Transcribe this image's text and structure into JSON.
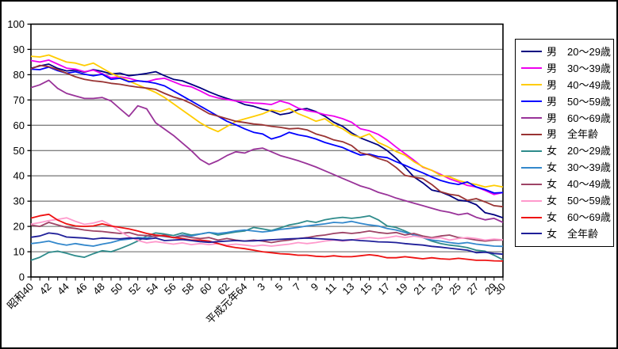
{
  "window": {
    "background": "#FFFFFF",
    "border_color": "#000000"
  },
  "chart_data": {
    "type": "line",
    "title": "",
    "grid": "horizontal",
    "legend_position": "right",
    "colors": {
      "gridline": "#808080",
      "axis": "#000000",
      "plot_background": "#FFFFFF"
    },
    "y_axis": {
      "min": 0,
      "max": 100,
      "step": 10,
      "tick_labels": [
        "0",
        "10",
        "20",
        "30",
        "40",
        "50",
        "60",
        "70",
        "80",
        "90",
        "100"
      ]
    },
    "x_axis": {
      "n_points": 54,
      "ticks": [
        {
          "i": 0,
          "label": "昭和40"
        },
        {
          "i": 2,
          "label": "42"
        },
        {
          "i": 4,
          "label": "44"
        },
        {
          "i": 6,
          "label": "46"
        },
        {
          "i": 8,
          "label": "48"
        },
        {
          "i": 10,
          "label": "50"
        },
        {
          "i": 12,
          "label": "52"
        },
        {
          "i": 14,
          "label": "54"
        },
        {
          "i": 16,
          "label": "56"
        },
        {
          "i": 18,
          "label": "58"
        },
        {
          "i": 20,
          "label": "60"
        },
        {
          "i": 22,
          "label": "62"
        },
        {
          "i": 24,
          "label": "平成元年64"
        },
        {
          "i": 26,
          "label": "3"
        },
        {
          "i": 28,
          "label": "5"
        },
        {
          "i": 30,
          "label": "7"
        },
        {
          "i": 32,
          "label": "9"
        },
        {
          "i": 34,
          "label": "11"
        },
        {
          "i": 36,
          "label": "13"
        },
        {
          "i": 38,
          "label": "15"
        },
        {
          "i": 40,
          "label": "17"
        },
        {
          "i": 42,
          "label": "19"
        },
        {
          "i": 44,
          "label": "21"
        },
        {
          "i": 46,
          "label": "23"
        },
        {
          "i": 48,
          "label": "25"
        },
        {
          "i": 50,
          "label": "27"
        },
        {
          "i": 52,
          "label": "29"
        },
        {
          "i": 53,
          "label": "30"
        }
      ]
    },
    "series": [
      {
        "key": "m20-29",
        "name": "男　20〜29歳",
        "color": "#000080",
        "values": [
          82.5,
          83.5,
          84.2,
          82.5,
          81.5,
          81.8,
          81.0,
          82.0,
          81.3,
          80.3,
          80.6,
          79.6,
          80.0,
          80.5,
          81.2,
          79.6,
          78.2,
          77.6,
          76.2,
          74.8,
          73.2,
          71.8,
          70.6,
          69.6,
          68.2,
          67.5,
          66.4,
          65.6,
          64.2,
          64.8,
          66.2,
          66.6,
          65.4,
          63.6,
          61.2,
          59.6,
          57.0,
          55.0,
          53.6,
          52.2,
          50.0,
          47.0,
          43.4,
          39.6,
          37.2,
          34.4,
          33.6,
          32.2,
          30.4,
          30.0,
          28.6,
          25.4,
          24.6,
          23.4
        ]
      },
      {
        "key": "m30-39",
        "name": "男　30〜39歳",
        "color": "#EE00EE",
        "values": [
          85.6,
          85.0,
          85.8,
          84.2,
          82.6,
          82.2,
          81.2,
          81.8,
          80.4,
          78.8,
          79.2,
          78.6,
          77.6,
          77.2,
          78.2,
          78.6,
          77.2,
          75.8,
          75.2,
          73.6,
          71.8,
          70.8,
          70.2,
          69.6,
          69.2,
          68.8,
          68.6,
          68.2,
          69.6,
          68.6,
          66.8,
          65.8,
          65.2,
          64.2,
          63.6,
          62.6,
          61.2,
          58.6,
          57.8,
          56.4,
          54.2,
          51.4,
          48.8,
          46.2,
          43.4,
          42.2,
          40.6,
          38.8,
          37.6,
          36.2,
          35.6,
          34.2,
          32.6,
          33.4
        ]
      },
      {
        "key": "m40-49",
        "name": "男　40〜49歳",
        "color": "#FFCC00",
        "values": [
          87.3,
          87.0,
          87.8,
          86.4,
          85.0,
          84.6,
          83.6,
          84.6,
          82.6,
          80.6,
          79.0,
          77.5,
          76.0,
          74.5,
          73.0,
          71.0,
          68.5,
          66.0,
          63.5,
          61.0,
          59.0,
          57.5,
          59.5,
          61.5,
          62.5,
          63.5,
          64.5,
          66.0,
          65.4,
          66.6,
          64.6,
          63.2,
          61.6,
          62.6,
          60.2,
          58.6,
          56.2,
          55.2,
          56.6,
          53.2,
          51.6,
          49.6,
          48.2,
          45.6,
          43.6,
          42.2,
          40.2,
          39.6,
          38.2,
          37.2,
          36.6,
          35.6,
          36.2,
          35.6
        ]
      },
      {
        "key": "m50-59",
        "name": "男　50〜59歳",
        "color": "#0000FF",
        "values": [
          82.2,
          82.0,
          83.0,
          81.6,
          80.6,
          81.2,
          80.2,
          79.6,
          80.2,
          78.2,
          78.6,
          77.2,
          77.6,
          77.2,
          76.6,
          75.6,
          73.6,
          71.6,
          69.6,
          67.6,
          65.6,
          63.6,
          61.6,
          60.2,
          58.6,
          57.2,
          56.6,
          54.6,
          55.6,
          57.2,
          56.2,
          55.6,
          54.6,
          53.2,
          52.2,
          51.2,
          49.6,
          48.2,
          48.6,
          47.6,
          47.2,
          45.6,
          44.2,
          42.6,
          41.2,
          39.6,
          38.2,
          37.2,
          36.6,
          37.6,
          35.6,
          34.6,
          33.2,
          33.4
        ]
      },
      {
        "key": "m60-69",
        "name": "男　60〜69歳",
        "color": "#993399",
        "values": [
          74.9,
          76.0,
          77.8,
          74.6,
          72.6,
          71.6,
          70.6,
          70.6,
          71.0,
          69.6,
          66.5,
          63.5,
          67.7,
          66.5,
          61.0,
          58.5,
          56.0,
          53.0,
          50.0,
          46.5,
          44.5,
          46.0,
          48.0,
          49.5,
          49.0,
          50.5,
          51.0,
          49.5,
          48.0,
          47.0,
          46.0,
          44.8,
          43.5,
          42.0,
          40.5,
          39.0,
          37.5,
          36.0,
          35.0,
          33.5,
          32.5,
          31.2,
          30.2,
          29.2,
          28.2,
          27.2,
          26.2,
          25.6,
          24.6,
          25.2,
          23.6,
          22.6,
          23.2,
          21.6
        ]
      },
      {
        "key": "m-all",
        "name": "男　全年齢",
        "color": "#993333",
        "values": [
          82.3,
          83.7,
          83.2,
          82.0,
          80.6,
          79.2,
          78.2,
          77.6,
          77.2,
          76.6,
          76.2,
          75.6,
          75.1,
          74.7,
          74.2,
          72.6,
          71.2,
          70.2,
          68.6,
          66.6,
          64.6,
          63.6,
          62.6,
          61.6,
          61.1,
          60.5,
          60.2,
          59.6,
          59.2,
          58.6,
          58.8,
          58.2,
          56.6,
          55.6,
          54.2,
          53.5,
          52.0,
          49.1,
          48.3,
          46.9,
          45.8,
          43.3,
          40.2,
          39.5,
          38.9,
          36.6,
          33.7,
          32.7,
          32.2,
          30.3,
          31.0,
          29.7,
          28.2,
          27.8
        ]
      },
      {
        "key": "f20-29",
        "name": "女　20〜29歳",
        "color": "#2E8B8B",
        "values": [
          6.6,
          7.8,
          9.7,
          10.2,
          9.4,
          8.4,
          7.8,
          9.2,
          10.4,
          10.0,
          11.2,
          12.6,
          14.2,
          16.2,
          17.4,
          17.0,
          16.4,
          17.4,
          16.6,
          17.0,
          17.6,
          16.6,
          17.2,
          17.8,
          18.2,
          19.6,
          19.0,
          18.4,
          19.4,
          20.6,
          21.2,
          22.2,
          21.6,
          22.6,
          23.2,
          23.6,
          23.2,
          23.6,
          24.2,
          22.6,
          20.2,
          19.6,
          18.2,
          16.6,
          15.6,
          14.2,
          13.2,
          12.6,
          12.2,
          11.6,
          10.6,
          10.2,
          8.6,
          6.8
        ]
      },
      {
        "key": "f30-39",
        "name": "女　30〜39歳",
        "color": "#3388CC",
        "values": [
          13.2,
          13.6,
          14.2,
          13.2,
          12.6,
          13.2,
          12.6,
          12.2,
          13.0,
          13.6,
          14.6,
          15.0,
          15.6,
          15.4,
          16.4,
          16.0,
          15.6,
          16.6,
          16.2,
          17.0,
          17.6,
          17.2,
          17.6,
          18.2,
          18.6,
          18.2,
          17.8,
          18.2,
          18.8,
          19.2,
          19.6,
          20.2,
          20.6,
          21.0,
          21.6,
          21.4,
          22.0,
          21.2,
          20.6,
          20.2,
          19.2,
          18.6,
          17.6,
          16.6,
          15.6,
          14.6,
          14.2,
          13.6,
          13.2,
          13.6,
          13.0,
          12.6,
          12.2,
          12.1
        ]
      },
      {
        "key": "f40-49",
        "name": "女　40〜49歳",
        "color": "#9E4466",
        "values": [
          20.6,
          20.0,
          21.6,
          20.6,
          19.6,
          19.2,
          18.6,
          18.2,
          18.0,
          17.6,
          17.2,
          17.6,
          16.6,
          16.4,
          16.0,
          16.6,
          15.6,
          16.2,
          15.6,
          15.2,
          15.6,
          14.6,
          15.2,
          14.6,
          14.2,
          14.6,
          14.2,
          13.6,
          14.2,
          14.6,
          15.2,
          15.6,
          16.2,
          16.6,
          17.2,
          17.6,
          17.2,
          17.6,
          18.2,
          17.6,
          17.2,
          17.6,
          16.6,
          17.2,
          16.2,
          15.6,
          16.2,
          16.6,
          15.6,
          15.2,
          14.6,
          14.2,
          14.6,
          14.6
        ]
      },
      {
        "key": "f50-59",
        "name": "女　50〜59歳",
        "color": "#FF99CC",
        "values": [
          20.9,
          21.5,
          22.3,
          22.8,
          23.4,
          22.0,
          20.8,
          21.3,
          22.3,
          20.5,
          18.0,
          16.0,
          14.5,
          13.5,
          14.0,
          13.5,
          13.0,
          13.5,
          12.8,
          13.2,
          12.8,
          13.2,
          12.6,
          13.0,
          12.6,
          12.2,
          12.6,
          12.2,
          12.6,
          13.0,
          13.6,
          13.2,
          13.6,
          14.2,
          14.6,
          14.2,
          14.6,
          15.2,
          15.6,
          15.2,
          15.6,
          16.2,
          15.6,
          16.2,
          15.6,
          15.2,
          15.6,
          14.6,
          15.2,
          15.6,
          15.2,
          14.6,
          15.0,
          14.7
        ]
      },
      {
        "key": "f60-69",
        "name": "女　60〜69歳",
        "color": "#EE1111",
        "values": [
          23.3,
          24.2,
          24.8,
          22.5,
          21.0,
          20.2,
          20.0,
          20.2,
          21.0,
          20.2,
          19.6,
          19.0,
          18.2,
          17.2,
          16.6,
          16.2,
          15.6,
          15.2,
          14.6,
          14.6,
          14.2,
          13.2,
          12.2,
          11.6,
          11.2,
          10.6,
          10.0,
          9.6,
          9.2,
          9.0,
          8.6,
          8.6,
          8.2,
          8.0,
          8.4,
          8.0,
          8.0,
          8.4,
          8.8,
          8.4,
          7.6,
          7.6,
          8.0,
          7.6,
          7.2,
          7.6,
          7.2,
          7.0,
          7.4,
          7.0,
          6.6,
          6.6,
          6.4,
          6.3
        ]
      },
      {
        "key": "f-all",
        "name": "女　全年齢",
        "color": "#1F1F99",
        "values": [
          15.7,
          16.2,
          17.4,
          17.0,
          15.8,
          15.6,
          15.4,
          15.0,
          15.4,
          15.2,
          15.1,
          15.4,
          15.2,
          15.0,
          15.4,
          14.4,
          14.6,
          14.8,
          14.4,
          14.0,
          13.7,
          14.0,
          14.2,
          14.4,
          14.2,
          14.3,
          14.5,
          14.7,
          14.9,
          15.1,
          15.2,
          15.4,
          15.2,
          15.0,
          14.8,
          14.5,
          14.7,
          14.4,
          14.2,
          13.9,
          13.8,
          13.6,
          13.2,
          12.9,
          12.6,
          12.1,
          11.8,
          11.4,
          11.0,
          10.6,
          9.6,
          9.8,
          9.3,
          9.0
        ]
      }
    ]
  }
}
